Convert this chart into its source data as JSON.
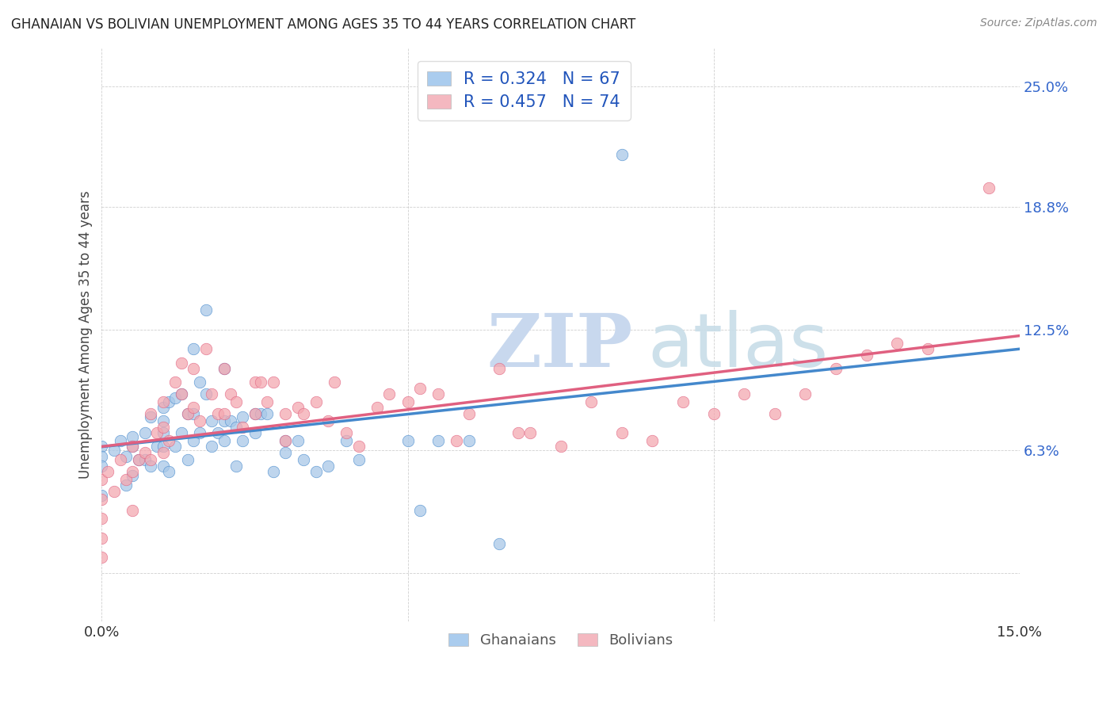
{
  "title": "GHANAIAN VS BOLIVIAN UNEMPLOYMENT AMONG AGES 35 TO 44 YEARS CORRELATION CHART",
  "source": "Source: ZipAtlas.com",
  "ylabel": "Unemployment Among Ages 35 to 44 years",
  "xlim": [
    0.0,
    0.15
  ],
  "ylim": [
    -0.025,
    0.27
  ],
  "ytick_vals": [
    0.0,
    0.063,
    0.125,
    0.188,
    0.25
  ],
  "ytick_labels": [
    "",
    "6.3%",
    "12.5%",
    "18.8%",
    "25.0%"
  ],
  "xtick_vals": [
    0.0,
    0.05,
    0.1,
    0.15
  ],
  "xtick_labels": [
    "0.0%",
    "",
    "",
    "15.0%"
  ],
  "legend_r1": "R = 0.324   N = 67",
  "legend_r2": "R = 0.457   N = 74",
  "legend_label1": "Ghanaians",
  "legend_label2": "Bolivians",
  "blue_color": "#a8c8e8",
  "pink_color": "#f4a8b0",
  "blue_line_color": "#4488cc",
  "pink_line_color": "#e06080",
  "blue_legend_color": "#aaccee",
  "pink_legend_color": "#f4b8c0",
  "ghanaian_x": [
    0.0,
    0.0,
    0.0,
    0.0,
    0.002,
    0.003,
    0.004,
    0.004,
    0.005,
    0.005,
    0.005,
    0.006,
    0.007,
    0.007,
    0.008,
    0.008,
    0.009,
    0.01,
    0.01,
    0.01,
    0.01,
    0.01,
    0.011,
    0.011,
    0.012,
    0.012,
    0.013,
    0.013,
    0.014,
    0.014,
    0.015,
    0.015,
    0.015,
    0.016,
    0.016,
    0.017,
    0.017,
    0.018,
    0.018,
    0.019,
    0.02,
    0.02,
    0.02,
    0.021,
    0.022,
    0.022,
    0.023,
    0.023,
    0.025,
    0.025,
    0.026,
    0.027,
    0.028,
    0.03,
    0.03,
    0.032,
    0.033,
    0.035,
    0.037,
    0.04,
    0.042,
    0.05,
    0.052,
    0.055,
    0.06,
    0.065,
    0.085
  ],
  "ghanaian_y": [
    0.065,
    0.06,
    0.055,
    0.04,
    0.063,
    0.068,
    0.06,
    0.045,
    0.07,
    0.065,
    0.05,
    0.058,
    0.072,
    0.058,
    0.08,
    0.055,
    0.065,
    0.085,
    0.078,
    0.072,
    0.065,
    0.055,
    0.088,
    0.052,
    0.09,
    0.065,
    0.092,
    0.072,
    0.082,
    0.058,
    0.115,
    0.082,
    0.068,
    0.098,
    0.072,
    0.135,
    0.092,
    0.078,
    0.065,
    0.072,
    0.105,
    0.078,
    0.068,
    0.078,
    0.075,
    0.055,
    0.08,
    0.068,
    0.082,
    0.072,
    0.082,
    0.082,
    0.052,
    0.068,
    0.062,
    0.068,
    0.058,
    0.052,
    0.055,
    0.068,
    0.058,
    0.068,
    0.032,
    0.068,
    0.068,
    0.015,
    0.215
  ],
  "bolivian_x": [
    0.0,
    0.0,
    0.0,
    0.0,
    0.0,
    0.001,
    0.002,
    0.003,
    0.004,
    0.005,
    0.005,
    0.005,
    0.006,
    0.007,
    0.008,
    0.008,
    0.009,
    0.01,
    0.01,
    0.01,
    0.011,
    0.012,
    0.013,
    0.013,
    0.014,
    0.015,
    0.015,
    0.016,
    0.017,
    0.018,
    0.019,
    0.02,
    0.02,
    0.021,
    0.022,
    0.023,
    0.025,
    0.025,
    0.026,
    0.027,
    0.028,
    0.03,
    0.03,
    0.032,
    0.033,
    0.035,
    0.037,
    0.038,
    0.04,
    0.042,
    0.045,
    0.047,
    0.05,
    0.052,
    0.055,
    0.058,
    0.06,
    0.065,
    0.068,
    0.07,
    0.075,
    0.08,
    0.085,
    0.09,
    0.095,
    0.1,
    0.105,
    0.11,
    0.115,
    0.12,
    0.125,
    0.13,
    0.135,
    0.145
  ],
  "bolivian_y": [
    0.048,
    0.038,
    0.028,
    0.018,
    0.008,
    0.052,
    0.042,
    0.058,
    0.048,
    0.065,
    0.052,
    0.032,
    0.058,
    0.062,
    0.082,
    0.058,
    0.072,
    0.088,
    0.075,
    0.062,
    0.068,
    0.098,
    0.108,
    0.092,
    0.082,
    0.105,
    0.085,
    0.078,
    0.115,
    0.092,
    0.082,
    0.105,
    0.082,
    0.092,
    0.088,
    0.075,
    0.098,
    0.082,
    0.098,
    0.088,
    0.098,
    0.082,
    0.068,
    0.085,
    0.082,
    0.088,
    0.078,
    0.098,
    0.072,
    0.065,
    0.085,
    0.092,
    0.088,
    0.095,
    0.092,
    0.068,
    0.082,
    0.105,
    0.072,
    0.072,
    0.065,
    0.088,
    0.072,
    0.068,
    0.088,
    0.082,
    0.092,
    0.082,
    0.092,
    0.105,
    0.112,
    0.118,
    0.115,
    0.198
  ]
}
